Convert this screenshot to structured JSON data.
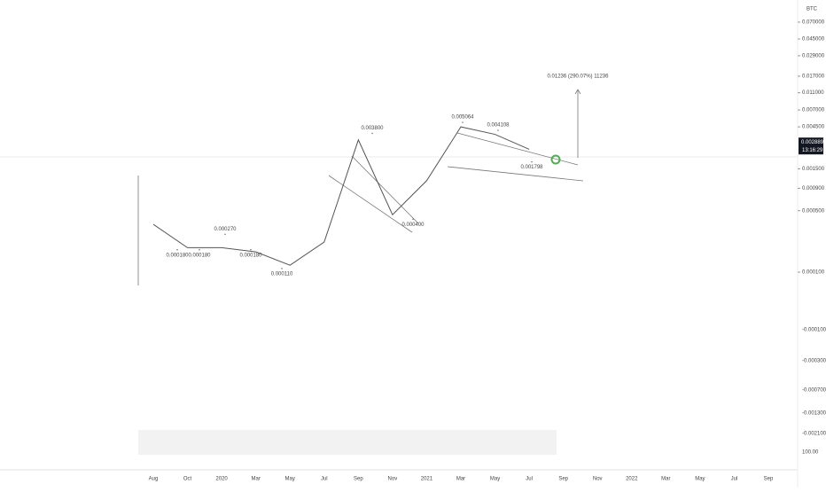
{
  "chart_data": {
    "type": "line",
    "log_scale": true,
    "currency": "BTC",
    "categories": [
      "Aug",
      "Oct",
      "2020",
      "Mar",
      "May",
      "Jul",
      "Sep",
      "Nov",
      "2021",
      "Mar",
      "May",
      "Jul",
      "Sep",
      "Nov",
      "2022",
      "Mar",
      "May",
      "Jul",
      "Sep"
    ],
    "series": [
      {
        "color": "#555555",
        "values": [
          0.00035,
          0.00019,
          0.00019,
          0.00017,
          0.00012,
          0.00022,
          0.0032,
          0.00045,
          0.0011,
          0.0045,
          0.0037,
          0.0025,
          null,
          null,
          null,
          null,
          null,
          null,
          null
        ]
      }
    ],
    "ylim": [
      3.28e-05,
      0.125
    ],
    "yticks": [
      {
        "value": 0.0001,
        "label": "0.000100"
      },
      {
        "value": 0.0005,
        "label": "0.000500"
      },
      {
        "value": 0.0009,
        "label": "0.000900"
      },
      {
        "value": 0.0015,
        "label": "0.001500"
      },
      {
        "value": 0.0045,
        "label": "0.004500"
      },
      {
        "value": 0.007,
        "label": "0.007000"
      },
      {
        "value": 0.011,
        "label": "0.011000"
      },
      {
        "value": 0.017,
        "label": "0.017000"
      },
      {
        "value": 0.029,
        "label": "0.029000"
      },
      {
        "value": 0.045,
        "label": "0.045000"
      },
      {
        "value": 0.07,
        "label": "0.070000"
      }
    ],
    "annotations": [
      {
        "value": 0.00027,
        "label": "0.000270"
      },
      {
        "value": 0.00018,
        "label": "0.000180"
      },
      {
        "value": 0.00018,
        "label": "0.000180"
      },
      {
        "value": 0.00018,
        "label": "0.000180"
      },
      {
        "value": 0.00011,
        "label": "0.000110"
      },
      {
        "value": 0.0038,
        "label": "0.003800"
      },
      {
        "value": 0.0004,
        "label": "0.000400"
      },
      {
        "value": 0.005064,
        "label": "0.005064"
      },
      {
        "value": 0.004108,
        "label": "0.004108"
      },
      {
        "value": 0.001798,
        "label": "0.001798"
      }
    ],
    "projection_label": "0.01236 (290.07%) 11236",
    "last_price": {
      "value": 0.002889,
      "label": "0.002889"
    },
    "countdown": "13:16:29",
    "volume_axis_labels": [
      "-0.000100",
      "-0.000300",
      "-0.000700",
      "-0.001300",
      "-0.002100",
      "100.00"
    ]
  }
}
